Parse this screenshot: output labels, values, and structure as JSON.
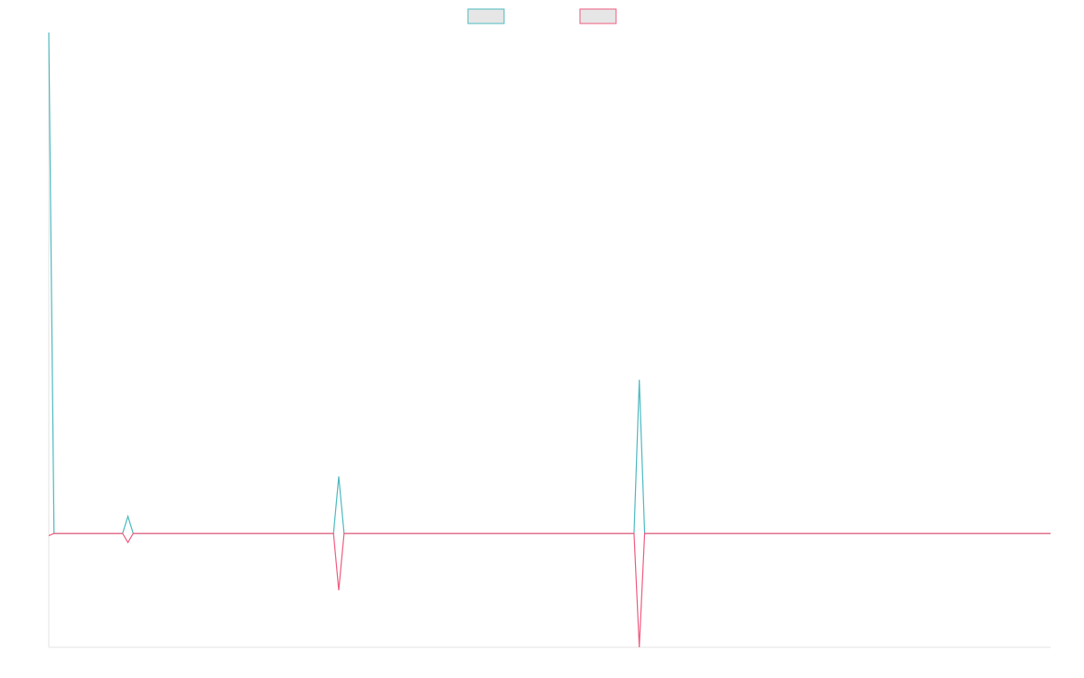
{
  "chart_data": {
    "type": "line",
    "title": "",
    "xlabel": "",
    "ylabel": "",
    "legend": {
      "placement": "top-center"
    },
    "grid": false,
    "x": [
      0,
      1,
      14,
      15,
      16,
      54,
      55,
      56,
      111,
      112,
      113,
      190
    ],
    "xlim": [
      0,
      190
    ],
    "ylim": [
      -100,
      440
    ],
    "series": [
      {
        "color": "#4bb9bf",
        "fill": "#e6e6e6",
        "values": [
          440,
          0,
          0,
          15,
          0,
          0,
          50,
          0,
          0,
          135,
          0,
          0
        ]
      },
      {
        "color": "#ef5a7e",
        "fill": "#e6e6e6",
        "values": [
          -2,
          0,
          0,
          -8,
          0,
          0,
          -50,
          0,
          0,
          -100,
          0,
          0
        ]
      }
    ]
  }
}
